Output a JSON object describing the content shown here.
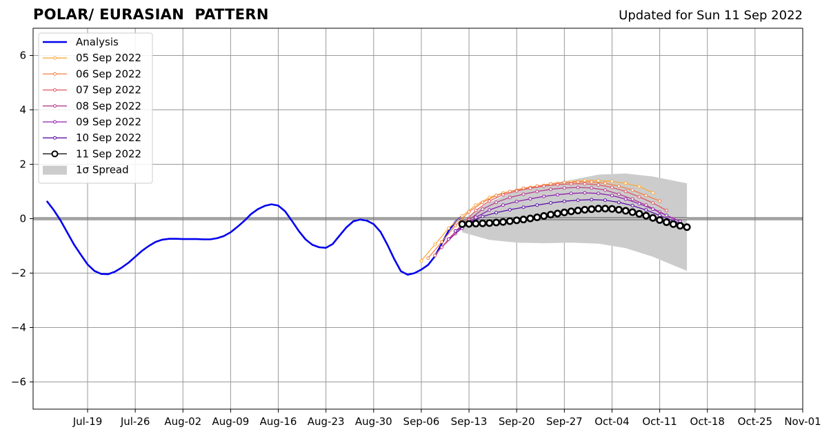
{
  "header": {
    "title": "POLAR/ EURASIAN  PATTERN",
    "subtitle": "Updated for Sun 11 Sep 2022"
  },
  "chart_data": {
    "type": "line",
    "x_axis": {
      "type": "date",
      "range": [
        "2022-07-11",
        "2022-11-01"
      ],
      "tick_dates": [
        "2022-07-19",
        "2022-07-26",
        "2022-08-02",
        "2022-08-09",
        "2022-08-16",
        "2022-08-23",
        "2022-08-30",
        "2022-09-06",
        "2022-09-13",
        "2022-09-20",
        "2022-09-27",
        "2022-10-04",
        "2022-10-11",
        "2022-10-18",
        "2022-10-25",
        "2022-11-01"
      ],
      "tick_labels": [
        "Jul-19",
        "Jul-26",
        "Aug-02",
        "Aug-09",
        "Aug-16",
        "Aug-23",
        "Aug-30",
        "Sep-06",
        "Sep-13",
        "Sep-20",
        "Sep-27",
        "Oct-04",
        "Oct-11",
        "Oct-18",
        "Oct-25",
        "Nov-01"
      ]
    },
    "y_axis": {
      "range": [
        -7,
        7
      ],
      "ticks": [
        -6,
        -4,
        -2,
        0,
        2,
        4,
        6
      ],
      "tick_labels": [
        "−6",
        "−4",
        "−2",
        "0",
        "2",
        "4",
        "6"
      ]
    },
    "grid": true,
    "zero_line": true,
    "legend_position": "upper-left",
    "analysis": {
      "name": "Analysis",
      "color": "#0000ee",
      "points": [
        [
          "2022-07-13",
          0.65
        ],
        [
          "2022-07-14",
          0.33
        ],
        [
          "2022-07-15",
          -0.05
        ],
        [
          "2022-07-16",
          -0.5
        ],
        [
          "2022-07-17",
          -0.95
        ],
        [
          "2022-07-18",
          -1.32
        ],
        [
          "2022-07-19",
          -1.68
        ],
        [
          "2022-07-20",
          -1.92
        ],
        [
          "2022-07-21",
          -2.03
        ],
        [
          "2022-07-22",
          -2.04
        ],
        [
          "2022-07-23",
          -1.95
        ],
        [
          "2022-07-24",
          -1.8
        ],
        [
          "2022-07-25",
          -1.62
        ],
        [
          "2022-07-26",
          -1.4
        ],
        [
          "2022-07-27",
          -1.18
        ],
        [
          "2022-07-28",
          -1.0
        ],
        [
          "2022-07-29",
          -0.85
        ],
        [
          "2022-07-30",
          -0.77
        ],
        [
          "2022-07-31",
          -0.74
        ],
        [
          "2022-08-01",
          -0.74
        ],
        [
          "2022-08-02",
          -0.75
        ],
        [
          "2022-08-03",
          -0.75
        ],
        [
          "2022-08-04",
          -0.75
        ],
        [
          "2022-08-05",
          -0.76
        ],
        [
          "2022-08-06",
          -0.76
        ],
        [
          "2022-08-07",
          -0.72
        ],
        [
          "2022-08-08",
          -0.64
        ],
        [
          "2022-08-09",
          -0.5
        ],
        [
          "2022-08-10",
          -0.3
        ],
        [
          "2022-08-11",
          -0.08
        ],
        [
          "2022-08-12",
          0.17
        ],
        [
          "2022-08-13",
          0.35
        ],
        [
          "2022-08-14",
          0.47
        ],
        [
          "2022-08-15",
          0.53
        ],
        [
          "2022-08-16",
          0.48
        ],
        [
          "2022-08-17",
          0.27
        ],
        [
          "2022-08-18",
          -0.08
        ],
        [
          "2022-08-19",
          -0.45
        ],
        [
          "2022-08-20",
          -0.76
        ],
        [
          "2022-08-21",
          -0.96
        ],
        [
          "2022-08-22",
          -1.05
        ],
        [
          "2022-08-23",
          -1.07
        ],
        [
          "2022-08-24",
          -0.93
        ],
        [
          "2022-08-25",
          -0.62
        ],
        [
          "2022-08-26",
          -0.32
        ],
        [
          "2022-08-27",
          -0.1
        ],
        [
          "2022-08-28",
          -0.03
        ],
        [
          "2022-08-29",
          -0.07
        ],
        [
          "2022-08-30",
          -0.2
        ],
        [
          "2022-08-31",
          -0.48
        ],
        [
          "2022-09-01",
          -0.95
        ],
        [
          "2022-09-02",
          -1.47
        ],
        [
          "2022-09-03",
          -1.93
        ],
        [
          "2022-09-04",
          -2.06
        ],
        [
          "2022-09-05",
          -2.0
        ],
        [
          "2022-09-06",
          -1.87
        ],
        [
          "2022-09-07",
          -1.7
        ],
        [
          "2022-09-08",
          -1.38
        ],
        [
          "2022-09-09",
          -0.92
        ],
        [
          "2022-09-10",
          -0.45
        ],
        [
          "2022-09-11",
          -0.12
        ],
        [
          "2022-09-12",
          0.1
        ]
      ]
    },
    "forecasts": [
      {
        "name": "05 Sep 2022",
        "color": "#fbaa3a",
        "points": [
          [
            "2022-09-06",
            -1.55
          ],
          [
            "2022-09-08",
            -0.95
          ],
          [
            "2022-09-10",
            -0.35
          ],
          [
            "2022-09-12",
            0.1
          ],
          [
            "2022-09-14",
            0.5
          ],
          [
            "2022-09-16",
            0.78
          ],
          [
            "2022-09-18",
            0.95
          ],
          [
            "2022-09-20",
            1.05
          ],
          [
            "2022-09-22",
            1.15
          ],
          [
            "2022-09-24",
            1.22
          ],
          [
            "2022-09-26",
            1.3
          ],
          [
            "2022-09-28",
            1.36
          ],
          [
            "2022-09-30",
            1.4
          ],
          [
            "2022-10-02",
            1.4
          ],
          [
            "2022-10-04",
            1.37
          ],
          [
            "2022-10-06",
            1.3
          ],
          [
            "2022-10-08",
            1.18
          ],
          [
            "2022-10-10",
            0.95
          ]
        ]
      },
      {
        "name": "06 Sep 2022",
        "color": "#f47f44",
        "points": [
          [
            "2022-09-07",
            -1.45
          ],
          [
            "2022-09-09",
            -0.85
          ],
          [
            "2022-09-11",
            -0.25
          ],
          [
            "2022-09-13",
            0.25
          ],
          [
            "2022-09-15",
            0.6
          ],
          [
            "2022-09-17",
            0.85
          ],
          [
            "2022-09-19",
            1.0
          ],
          [
            "2022-09-21",
            1.12
          ],
          [
            "2022-09-23",
            1.2
          ],
          [
            "2022-09-25",
            1.28
          ],
          [
            "2022-09-27",
            1.33
          ],
          [
            "2022-09-29",
            1.35
          ],
          [
            "2022-10-01",
            1.35
          ],
          [
            "2022-10-03",
            1.3
          ],
          [
            "2022-10-05",
            1.2
          ],
          [
            "2022-10-07",
            1.05
          ],
          [
            "2022-10-09",
            0.85
          ],
          [
            "2022-10-11",
            0.65
          ]
        ]
      },
      {
        "name": "07 Sep 2022",
        "color": "#de5666",
        "points": [
          [
            "2022-09-08",
            -1.35
          ],
          [
            "2022-09-10",
            -0.75
          ],
          [
            "2022-09-12",
            -0.2
          ],
          [
            "2022-09-14",
            0.3
          ],
          [
            "2022-09-16",
            0.65
          ],
          [
            "2022-09-18",
            0.88
          ],
          [
            "2022-09-20",
            1.02
          ],
          [
            "2022-09-22",
            1.12
          ],
          [
            "2022-09-24",
            1.2
          ],
          [
            "2022-09-26",
            1.25
          ],
          [
            "2022-09-28",
            1.28
          ],
          [
            "2022-09-30",
            1.28
          ],
          [
            "2022-10-02",
            1.24
          ],
          [
            "2022-10-04",
            1.15
          ],
          [
            "2022-10-06",
            1.0
          ],
          [
            "2022-10-08",
            0.8
          ],
          [
            "2022-10-10",
            0.58
          ],
          [
            "2022-10-12",
            0.3
          ]
        ]
      },
      {
        "name": "08 Sep 2022",
        "color": "#b63d8e",
        "points": [
          [
            "2022-09-09",
            -1.05
          ],
          [
            "2022-09-11",
            -0.55
          ],
          [
            "2022-09-13",
            -0.05
          ],
          [
            "2022-09-15",
            0.35
          ],
          [
            "2022-09-17",
            0.6
          ],
          [
            "2022-09-19",
            0.78
          ],
          [
            "2022-09-21",
            0.9
          ],
          [
            "2022-09-23",
            1.0
          ],
          [
            "2022-09-25",
            1.08
          ],
          [
            "2022-09-27",
            1.13
          ],
          [
            "2022-09-29",
            1.15
          ],
          [
            "2022-10-01",
            1.13
          ],
          [
            "2022-10-03",
            1.05
          ],
          [
            "2022-10-05",
            0.9
          ],
          [
            "2022-10-07",
            0.72
          ],
          [
            "2022-10-09",
            0.5
          ],
          [
            "2022-10-11",
            0.25
          ],
          [
            "2022-10-13",
            0.0
          ]
        ]
      },
      {
        "name": "09 Sep 2022",
        "color": "#8e1fb0",
        "points": [
          [
            "2022-09-10",
            -0.75
          ],
          [
            "2022-09-12",
            -0.35
          ],
          [
            "2022-09-14",
            0.05
          ],
          [
            "2022-09-16",
            0.32
          ],
          [
            "2022-09-18",
            0.5
          ],
          [
            "2022-09-20",
            0.63
          ],
          [
            "2022-09-22",
            0.73
          ],
          [
            "2022-09-24",
            0.82
          ],
          [
            "2022-09-26",
            0.88
          ],
          [
            "2022-09-28",
            0.93
          ],
          [
            "2022-09-30",
            0.95
          ],
          [
            "2022-10-02",
            0.93
          ],
          [
            "2022-10-04",
            0.85
          ],
          [
            "2022-10-06",
            0.72
          ],
          [
            "2022-10-08",
            0.55
          ],
          [
            "2022-10-10",
            0.35
          ],
          [
            "2022-10-12",
            0.12
          ],
          [
            "2022-10-14",
            -0.1
          ]
        ]
      },
      {
        "name": "10 Sep 2022",
        "color": "#5a0ea8",
        "points": [
          [
            "2022-09-11",
            -0.45
          ],
          [
            "2022-09-13",
            -0.15
          ],
          [
            "2022-09-15",
            0.08
          ],
          [
            "2022-09-17",
            0.22
          ],
          [
            "2022-09-19",
            0.33
          ],
          [
            "2022-09-21",
            0.42
          ],
          [
            "2022-09-23",
            0.5
          ],
          [
            "2022-09-25",
            0.58
          ],
          [
            "2022-09-27",
            0.64
          ],
          [
            "2022-09-29",
            0.68
          ],
          [
            "2022-10-01",
            0.7
          ],
          [
            "2022-10-03",
            0.68
          ],
          [
            "2022-10-05",
            0.6
          ],
          [
            "2022-10-07",
            0.48
          ],
          [
            "2022-10-09",
            0.32
          ],
          [
            "2022-10-11",
            0.12
          ],
          [
            "2022-10-13",
            -0.08
          ],
          [
            "2022-10-15",
            -0.25
          ]
        ]
      },
      {
        "name": "11 Sep 2022",
        "color": "#000000",
        "points": [
          [
            "2022-09-12",
            -0.2
          ],
          [
            "2022-09-13",
            -0.19
          ],
          [
            "2022-09-14",
            -0.18
          ],
          [
            "2022-09-15",
            -0.17
          ],
          [
            "2022-09-16",
            -0.16
          ],
          [
            "2022-09-17",
            -0.14
          ],
          [
            "2022-09-18",
            -0.12
          ],
          [
            "2022-09-19",
            -0.09
          ],
          [
            "2022-09-20",
            -0.06
          ],
          [
            "2022-09-21",
            -0.03
          ],
          [
            "2022-09-22",
            0.01
          ],
          [
            "2022-09-23",
            0.05
          ],
          [
            "2022-09-24",
            0.1
          ],
          [
            "2022-09-25",
            0.15
          ],
          [
            "2022-09-26",
            0.19
          ],
          [
            "2022-09-27",
            0.23
          ],
          [
            "2022-09-28",
            0.27
          ],
          [
            "2022-09-29",
            0.3
          ],
          [
            "2022-09-30",
            0.33
          ],
          [
            "2022-10-01",
            0.35
          ],
          [
            "2022-10-02",
            0.37
          ],
          [
            "2022-10-03",
            0.37
          ],
          [
            "2022-10-04",
            0.36
          ],
          [
            "2022-10-05",
            0.33
          ],
          [
            "2022-10-06",
            0.29
          ],
          [
            "2022-10-07",
            0.24
          ],
          [
            "2022-10-08",
            0.18
          ],
          [
            "2022-10-09",
            0.11
          ],
          [
            "2022-10-10",
            0.03
          ],
          [
            "2022-10-11",
            -0.05
          ],
          [
            "2022-10-12",
            -0.13
          ],
          [
            "2022-10-13",
            -0.2
          ],
          [
            "2022-10-14",
            -0.26
          ],
          [
            "2022-10-15",
            -0.31
          ]
        ]
      }
    ],
    "spread": {
      "name": "1σ Spread",
      "color": "#cccccc",
      "upper": [
        [
          "2022-09-12",
          -0.05
        ],
        [
          "2022-09-16",
          0.6
        ],
        [
          "2022-09-20",
          1.05
        ],
        [
          "2022-09-24",
          1.25
        ],
        [
          "2022-09-28",
          1.42
        ],
        [
          "2022-10-02",
          1.62
        ],
        [
          "2022-10-06",
          1.66
        ],
        [
          "2022-10-10",
          1.55
        ],
        [
          "2022-10-15",
          1.3
        ]
      ],
      "lower": [
        [
          "2022-09-12",
          -0.5
        ],
        [
          "2022-09-16",
          -0.78
        ],
        [
          "2022-09-20",
          -0.88
        ],
        [
          "2022-09-24",
          -0.9
        ],
        [
          "2022-09-28",
          -0.88
        ],
        [
          "2022-10-02",
          -0.92
        ],
        [
          "2022-10-06",
          -1.08
        ],
        [
          "2022-10-10",
          -1.4
        ],
        [
          "2022-10-15",
          -1.92
        ]
      ]
    }
  }
}
